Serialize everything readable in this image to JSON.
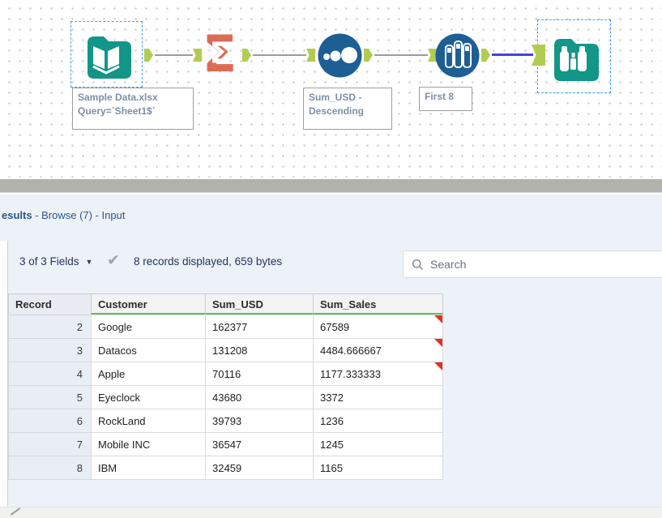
{
  "colors": {
    "tool_teal": "#119688",
    "tool_orange": "#dd6a55",
    "tool_blue": "#1d5e95",
    "anchor_green": "#b2cc52",
    "selected_connection": "#4343dd",
    "selection_dash": "#3da0f5",
    "header_green_underline": "#6abf4b",
    "flag_red": "#e03225",
    "results_bg": "#edf1f8"
  },
  "canvas": {
    "tools": [
      {
        "name": "input-data",
        "icon": "book-icon",
        "selected": true,
        "annotation": "Sample Data.xlsx\nQuery=`Sheet1$`"
      },
      {
        "name": "summarize",
        "icon": "sigma-icon",
        "selected": false,
        "glyph": "Σ"
      },
      {
        "name": "sort",
        "icon": "dots-icon",
        "selected": false,
        "annotation": "Sum_USD -\nDescending"
      },
      {
        "name": "sample",
        "icon": "test-tubes-icon",
        "selected": false,
        "annotation": "First 8"
      },
      {
        "name": "browse",
        "icon": "binoculars-icon",
        "selected": true
      }
    ]
  },
  "results": {
    "header": {
      "title_bold": "esults",
      "title_rest": " - Browse (7) - Input"
    },
    "toolbar": {
      "fields_dropdown": "3 of 3 Fields",
      "caret": "▼",
      "check": "✔",
      "records_info": "8 records displayed, 659 bytes",
      "search_placeholder": "Search"
    },
    "table": {
      "columns": [
        "Record",
        "Customer",
        "Sum_USD",
        "Sum_Sales"
      ],
      "rows": [
        {
          "record": "2",
          "customer": "Google",
          "sum_usd": "162377",
          "sum_sales": "67589",
          "flag": true
        },
        {
          "record": "3",
          "customer": "Datacos",
          "sum_usd": "131208",
          "sum_sales": "4484.666667",
          "flag": true
        },
        {
          "record": "4",
          "customer": "Apple",
          "sum_usd": "70116",
          "sum_sales": "1177.333333",
          "flag": true
        },
        {
          "record": "5",
          "customer": "Eyeclock",
          "sum_usd": "43680",
          "sum_sales": "3372",
          "flag": false
        },
        {
          "record": "6",
          "customer": "RockLand",
          "sum_usd": "39793",
          "sum_sales": "1236",
          "flag": false
        },
        {
          "record": "7",
          "customer": "Mobile INC",
          "sum_usd": "36547",
          "sum_sales": "1245",
          "flag": false
        },
        {
          "record": "8",
          "customer": "IBM",
          "sum_usd": "32459",
          "sum_sales": "1165",
          "flag": false
        }
      ]
    }
  }
}
